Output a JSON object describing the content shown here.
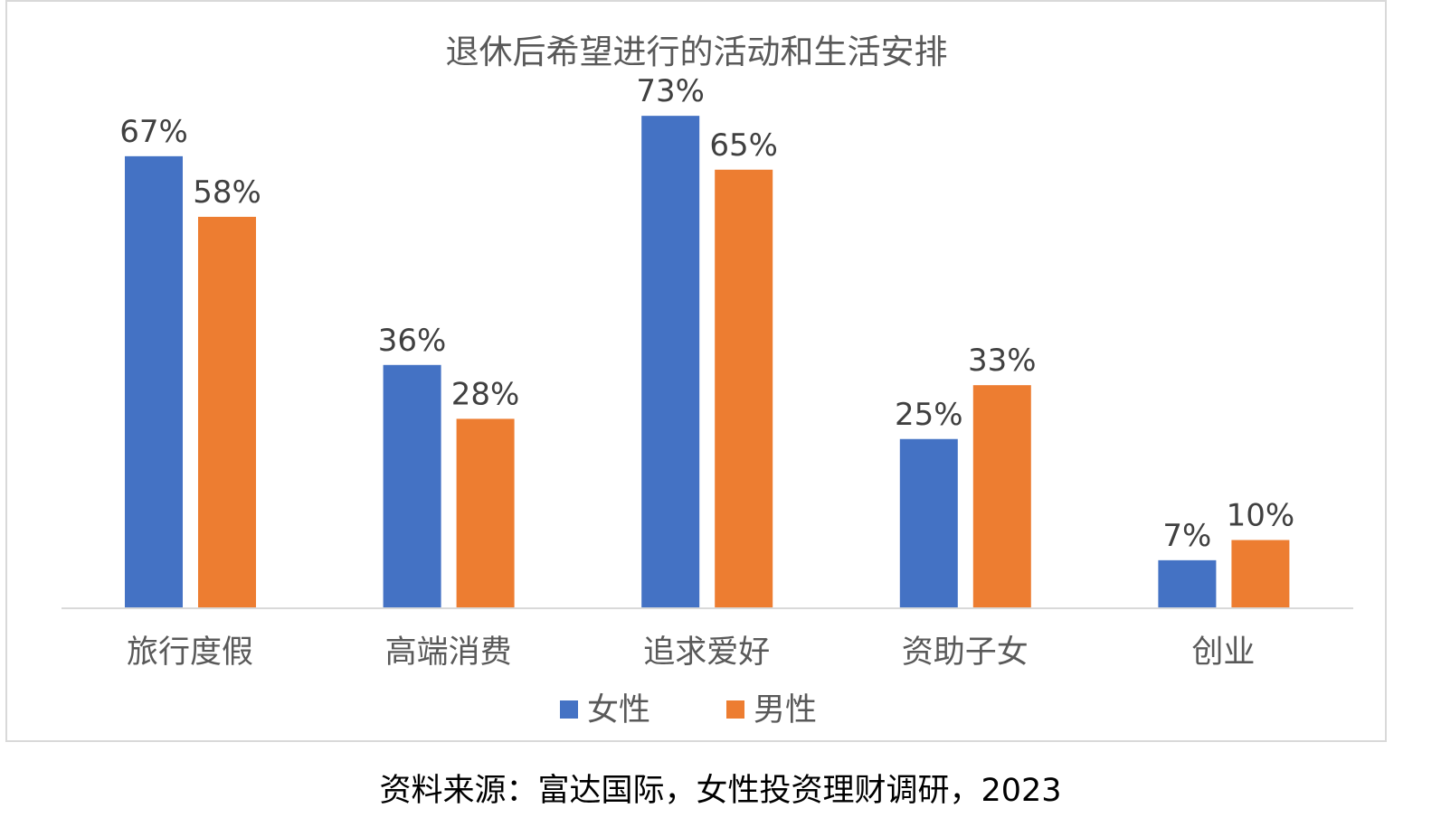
{
  "chart_data": {
    "type": "bar",
    "title": "退休后希望进行的活动和生活安排",
    "categories": [
      "旅行度假",
      "高端消费",
      "追求爱好",
      "资助子女",
      "创业"
    ],
    "series": [
      {
        "name": "女性",
        "values": [
          67,
          36,
          73,
          25,
          7
        ],
        "labels": [
          "67%",
          "36%",
          "73%",
          "25%",
          "7%"
        ],
        "color": "#4472C4"
      },
      {
        "name": "男性",
        "values": [
          58,
          28,
          65,
          33,
          10
        ],
        "labels": [
          "58%",
          "28%",
          "65%",
          "33%",
          "10%"
        ],
        "color": "#ED7D31"
      }
    ],
    "ylim": [
      0,
      75
    ],
    "grid": false,
    "legend": "bottom",
    "xlabel": "",
    "ylabel": ""
  },
  "source": "资料来源：富达国际，女性投资理财调研，2023"
}
